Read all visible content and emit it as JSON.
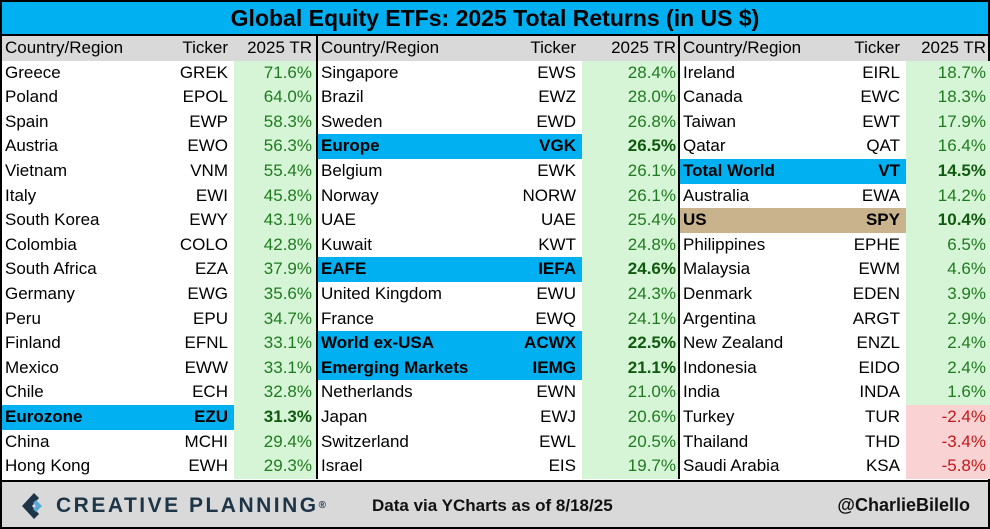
{
  "title": "Global Equity ETFs: 2025 Total Returns (in US $)",
  "headers": {
    "region": "Country/Region",
    "ticker": "Ticker",
    "tr": "2025 TR"
  },
  "footer": {
    "brand": "CREATIVE PLANNING",
    "brand_mark": "®",
    "source": "Data via YCharts as of 8/18/25",
    "handle": "@CharlieBilello"
  },
  "colors": {
    "title_bg": "#00b0f0",
    "highlight_blue": "#00b0f0",
    "highlight_gold": "#c9b38c",
    "positive_bg": "#d6f5d6",
    "negative_bg": "#f9d3d3",
    "header_bg": "#d9d9d9"
  },
  "chart_data": {
    "type": "table",
    "title": "Global Equity ETFs: 2025 Total Returns (in US $)",
    "columns": [
      "Country/Region",
      "Ticker",
      "2025 TR"
    ],
    "groups": [
      [
        {
          "name": "Greece",
          "ticker": "GREK",
          "tr": "71.6%",
          "value": 71.6
        },
        {
          "name": "Poland",
          "ticker": "EPOL",
          "tr": "64.0%",
          "value": 64.0
        },
        {
          "name": "Spain",
          "ticker": "EWP",
          "tr": "58.3%",
          "value": 58.3
        },
        {
          "name": "Austria",
          "ticker": "EWO",
          "tr": "56.3%",
          "value": 56.3
        },
        {
          "name": "Vietnam",
          "ticker": "VNM",
          "tr": "55.4%",
          "value": 55.4
        },
        {
          "name": "Italy",
          "ticker": "EWI",
          "tr": "45.8%",
          "value": 45.8
        },
        {
          "name": "South Korea",
          "ticker": "EWY",
          "tr": "43.1%",
          "value": 43.1
        },
        {
          "name": "Colombia",
          "ticker": "COLO",
          "tr": "42.8%",
          "value": 42.8
        },
        {
          "name": "South Africa",
          "ticker": "EZA",
          "tr": "37.9%",
          "value": 37.9
        },
        {
          "name": "Germany",
          "ticker": "EWG",
          "tr": "35.6%",
          "value": 35.6
        },
        {
          "name": "Peru",
          "ticker": "EPU",
          "tr": "34.7%",
          "value": 34.7
        },
        {
          "name": "Finland",
          "ticker": "EFNL",
          "tr": "33.1%",
          "value": 33.1
        },
        {
          "name": "Mexico",
          "ticker": "EWW",
          "tr": "33.1%",
          "value": 33.1
        },
        {
          "name": "Chile",
          "ticker": "ECH",
          "tr": "32.8%",
          "value": 32.8
        },
        {
          "name": "Eurozone",
          "ticker": "EZU",
          "tr": "31.3%",
          "value": 31.3,
          "highlight": "blue"
        },
        {
          "name": "China",
          "ticker": "MCHI",
          "tr": "29.4%",
          "value": 29.4
        },
        {
          "name": "Hong Kong",
          "ticker": "EWH",
          "tr": "29.3%",
          "value": 29.3
        }
      ],
      [
        {
          "name": "Singapore",
          "ticker": "EWS",
          "tr": "28.4%",
          "value": 28.4
        },
        {
          "name": "Brazil",
          "ticker": "EWZ",
          "tr": "28.0%",
          "value": 28.0
        },
        {
          "name": "Sweden",
          "ticker": "EWD",
          "tr": "26.8%",
          "value": 26.8
        },
        {
          "name": "Europe",
          "ticker": "VGK",
          "tr": "26.5%",
          "value": 26.5,
          "highlight": "blue"
        },
        {
          "name": "Belgium",
          "ticker": "EWK",
          "tr": "26.1%",
          "value": 26.1
        },
        {
          "name": "Norway",
          "ticker": "NORW",
          "tr": "26.1%",
          "value": 26.1
        },
        {
          "name": "UAE",
          "ticker": "UAE",
          "tr": "25.4%",
          "value": 25.4
        },
        {
          "name": "Kuwait",
          "ticker": "KWT",
          "tr": "24.8%",
          "value": 24.8
        },
        {
          "name": "EAFE",
          "ticker": "IEFA",
          "tr": "24.6%",
          "value": 24.6,
          "highlight": "blue"
        },
        {
          "name": "United Kingdom",
          "ticker": "EWU",
          "tr": "24.3%",
          "value": 24.3
        },
        {
          "name": "France",
          "ticker": "EWQ",
          "tr": "24.1%",
          "value": 24.1
        },
        {
          "name": "World ex-USA",
          "ticker": "ACWX",
          "tr": "22.5%",
          "value": 22.5,
          "highlight": "blue"
        },
        {
          "name": "Emerging Markets",
          "ticker": "IEMG",
          "tr": "21.1%",
          "value": 21.1,
          "highlight": "blue"
        },
        {
          "name": "Netherlands",
          "ticker": "EWN",
          "tr": "21.0%",
          "value": 21.0
        },
        {
          "name": "Japan",
          "ticker": "EWJ",
          "tr": "20.6%",
          "value": 20.6
        },
        {
          "name": "Switzerland",
          "ticker": "EWL",
          "tr": "20.5%",
          "value": 20.5
        },
        {
          "name": "Israel",
          "ticker": "EIS",
          "tr": "19.7%",
          "value": 19.7
        }
      ],
      [
        {
          "name": "Ireland",
          "ticker": "EIRL",
          "tr": "18.7%",
          "value": 18.7
        },
        {
          "name": "Canada",
          "ticker": "EWC",
          "tr": "18.3%",
          "value": 18.3
        },
        {
          "name": "Taiwan",
          "ticker": "EWT",
          "tr": "17.9%",
          "value": 17.9
        },
        {
          "name": "Qatar",
          "ticker": "QAT",
          "tr": "16.4%",
          "value": 16.4
        },
        {
          "name": "Total World",
          "ticker": "VT",
          "tr": "14.5%",
          "value": 14.5,
          "highlight": "blue"
        },
        {
          "name": "Australia",
          "ticker": "EWA",
          "tr": "14.2%",
          "value": 14.2
        },
        {
          "name": "US",
          "ticker": "SPY",
          "tr": "10.4%",
          "value": 10.4,
          "highlight": "gold"
        },
        {
          "name": "Philippines",
          "ticker": "EPHE",
          "tr": "6.5%",
          "value": 6.5
        },
        {
          "name": "Malaysia",
          "ticker": "EWM",
          "tr": "4.6%",
          "value": 4.6
        },
        {
          "name": "Denmark",
          "ticker": "EDEN",
          "tr": "3.9%",
          "value": 3.9
        },
        {
          "name": "Argentina",
          "ticker": "ARGT",
          "tr": "2.9%",
          "value": 2.9
        },
        {
          "name": "New Zealand",
          "ticker": "ENZL",
          "tr": "2.4%",
          "value": 2.4
        },
        {
          "name": "Indonesia",
          "ticker": "EIDO",
          "tr": "2.4%",
          "value": 2.4
        },
        {
          "name": "India",
          "ticker": "INDA",
          "tr": "1.6%",
          "value": 1.6
        },
        {
          "name": "Turkey",
          "ticker": "TUR",
          "tr": "-2.4%",
          "value": -2.4
        },
        {
          "name": "Thailand",
          "ticker": "THD",
          "tr": "-3.4%",
          "value": -3.4
        },
        {
          "name": "Saudi Arabia",
          "ticker": "KSA",
          "tr": "-5.8%",
          "value": -5.8
        }
      ]
    ]
  }
}
